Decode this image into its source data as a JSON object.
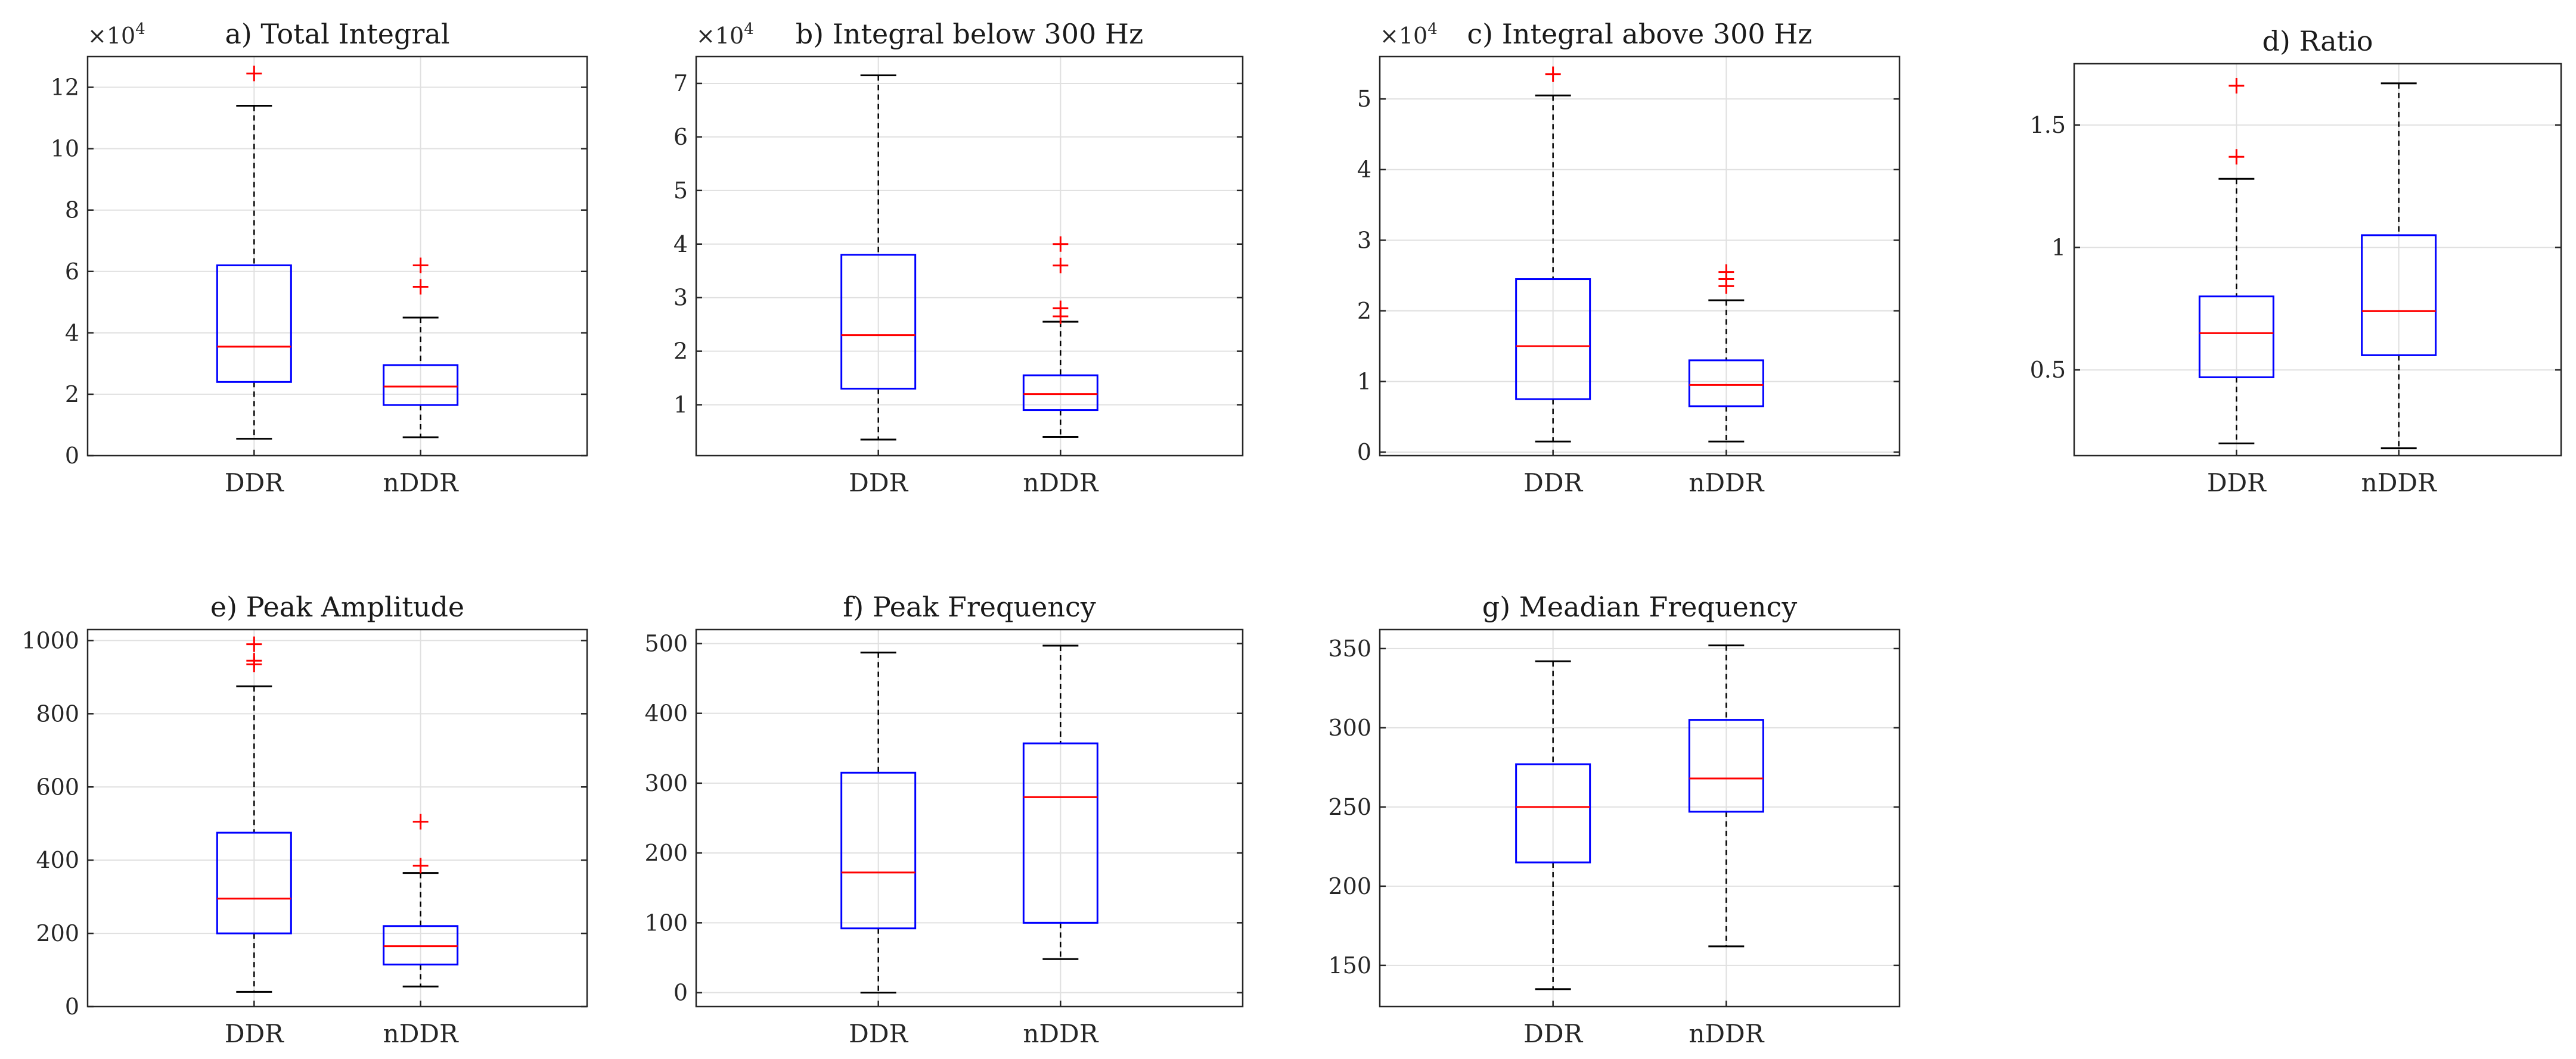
{
  "chart_data": [
    {
      "type": "boxplot",
      "title": "a) Total Integral",
      "exponent_label": "×10",
      "exponent_power": "4",
      "ylim": [
        0,
        13
      ],
      "yticks": [
        0,
        2,
        4,
        6,
        8,
        10,
        12
      ],
      "ytick_labels": [
        "0",
        "2",
        "4",
        "6",
        "8",
        "10",
        "12"
      ],
      "grid": true,
      "categories": [
        "DDR",
        "nDDR"
      ],
      "boxes": [
        {
          "name": "DDR",
          "whisker_low": 0.55,
          "q1": 2.4,
          "median": 3.55,
          "q3": 6.2,
          "whisker_high": 11.4,
          "outliers": [
            12.45
          ]
        },
        {
          "name": "nDDR",
          "whisker_low": 0.6,
          "q1": 1.65,
          "median": 2.25,
          "q3": 2.95,
          "whisker_high": 4.5,
          "outliers": [
            5.5,
            6.2
          ]
        }
      ]
    },
    {
      "type": "boxplot",
      "title": "b) Integral below 300 Hz",
      "exponent_label": "×10",
      "exponent_power": "4",
      "ylim": [
        0.05,
        7.5
      ],
      "yticks": [
        1,
        2,
        3,
        4,
        5,
        6,
        7
      ],
      "ytick_labels": [
        "1",
        "2",
        "3",
        "4",
        "5",
        "6",
        "7"
      ],
      "grid": true,
      "categories": [
        "DDR",
        "nDDR"
      ],
      "boxes": [
        {
          "name": "DDR",
          "whisker_low": 0.35,
          "q1": 1.3,
          "median": 2.3,
          "q3": 3.8,
          "whisker_high": 7.15,
          "outliers": []
        },
        {
          "name": "nDDR",
          "whisker_low": 0.4,
          "q1": 0.9,
          "median": 1.2,
          "q3": 1.55,
          "whisker_high": 2.55,
          "outliers": [
            2.65,
            2.8,
            3.6,
            4.0
          ]
        }
      ]
    },
    {
      "type": "boxplot",
      "title": "c) Integral above 300 Hz",
      "exponent_label": "×10",
      "exponent_power": "4",
      "ylim": [
        -0.05,
        5.6
      ],
      "yticks": [
        0,
        1,
        2,
        3,
        4,
        5
      ],
      "ytick_labels": [
        "0",
        "1",
        "2",
        "3",
        "4",
        "5"
      ],
      "grid": true,
      "categories": [
        "DDR",
        "nDDR"
      ],
      "boxes": [
        {
          "name": "DDR",
          "whisker_low": 0.15,
          "q1": 0.75,
          "median": 1.5,
          "q3": 2.45,
          "whisker_high": 5.05,
          "outliers": [
            5.35
          ]
        },
        {
          "name": "nDDR",
          "whisker_low": 0.15,
          "q1": 0.65,
          "median": 0.95,
          "q3": 1.3,
          "whisker_high": 2.15,
          "outliers": [
            2.35,
            2.45,
            2.55
          ]
        }
      ]
    },
    {
      "type": "boxplot",
      "title": "d) Ratio",
      "exponent_label": "",
      "exponent_power": "",
      "ylim": [
        0.15,
        1.75
      ],
      "yticks": [
        0.5,
        1,
        1.5
      ],
      "ytick_labels": [
        "0.5",
        "1",
        "1.5"
      ],
      "grid": true,
      "categories": [
        "DDR",
        "nDDR"
      ],
      "boxes": [
        {
          "name": "DDR",
          "whisker_low": 0.2,
          "q1": 0.47,
          "median": 0.65,
          "q3": 0.8,
          "whisker_high": 1.28,
          "outliers": [
            1.37,
            1.66
          ]
        },
        {
          "name": "nDDR",
          "whisker_low": 0.18,
          "q1": 0.56,
          "median": 0.74,
          "q3": 1.05,
          "whisker_high": 1.67,
          "outliers": []
        }
      ]
    },
    {
      "type": "boxplot",
      "title": "e) Peak Amplitude",
      "exponent_label": "",
      "exponent_power": "",
      "ylim": [
        0,
        1030
      ],
      "yticks": [
        0,
        200,
        400,
        600,
        800,
        1000
      ],
      "ytick_labels": [
        "0",
        "200",
        "400",
        "600",
        "800",
        "1000"
      ],
      "grid": true,
      "categories": [
        "DDR",
        "nDDR"
      ],
      "boxes": [
        {
          "name": "DDR",
          "whisker_low": 40,
          "q1": 200,
          "median": 295,
          "q3": 475,
          "whisker_high": 875,
          "outliers": [
            935,
            945,
            990
          ]
        },
        {
          "name": "nDDR",
          "whisker_low": 55,
          "q1": 115,
          "median": 165,
          "q3": 220,
          "whisker_high": 365,
          "outliers": [
            385,
            505
          ]
        }
      ]
    },
    {
      "type": "boxplot",
      "title": "f) Peak Frequency",
      "exponent_label": "",
      "exponent_power": "",
      "ylim": [
        -20,
        520
      ],
      "yticks": [
        0,
        100,
        200,
        300,
        400,
        500
      ],
      "ytick_labels": [
        "0",
        "100",
        "200",
        "300",
        "400",
        "500"
      ],
      "grid": true,
      "categories": [
        "DDR",
        "nDDR"
      ],
      "boxes": [
        {
          "name": "DDR",
          "whisker_low": 0,
          "q1": 92,
          "median": 172,
          "q3": 315,
          "whisker_high": 487,
          "outliers": []
        },
        {
          "name": "nDDR",
          "whisker_low": 48,
          "q1": 100,
          "median": 280,
          "q3": 357,
          "whisker_high": 497,
          "outliers": []
        }
      ]
    },
    {
      "type": "boxplot",
      "title": "g) Meadian Frequency",
      "exponent_label": "",
      "exponent_power": "",
      "ylim": [
        124,
        362
      ],
      "yticks": [
        150,
        200,
        250,
        300,
        350
      ],
      "ytick_labels": [
        "150",
        "200",
        "250",
        "300",
        "350"
      ],
      "grid": true,
      "categories": [
        "DDR",
        "nDDR"
      ],
      "boxes": [
        {
          "name": "DDR",
          "whisker_low": 135,
          "q1": 215,
          "median": 250,
          "q3": 277,
          "whisker_high": 342,
          "outliers": []
        },
        {
          "name": "nDDR",
          "whisker_low": 162,
          "q1": 247,
          "median": 268,
          "q3": 305,
          "whisker_high": 352,
          "outliers": []
        }
      ]
    }
  ],
  "colors": {
    "box": "#0000ff",
    "median": "#ff0000",
    "outlier": "#ff0000",
    "whisker": "#000000",
    "grid": "#e0e0e0",
    "axis": "#262626"
  }
}
